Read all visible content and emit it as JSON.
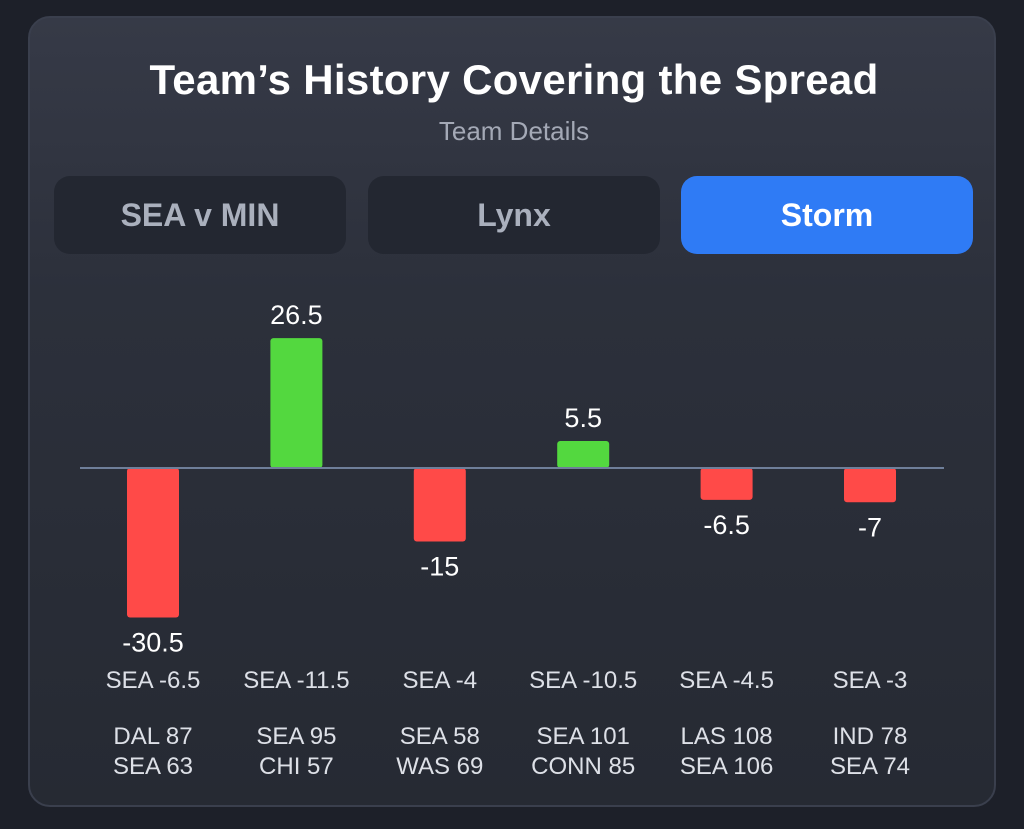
{
  "header": {
    "title": "Team’s History Covering the Spread",
    "subtitle": "Team Details"
  },
  "tabs": [
    {
      "label": "SEA v MIN",
      "active": false
    },
    {
      "label": "Lynx",
      "active": false
    },
    {
      "label": "Storm",
      "active": true
    }
  ],
  "colors": {
    "positive": "#53d83f",
    "negative": "#ff4a48",
    "accent": "#2f7bf5",
    "baseline": "#6f7f9a"
  },
  "chart_data": {
    "type": "bar",
    "categories": [
      "SEA -6.5",
      "SEA -11.5",
      "SEA -4",
      "SEA -10.5",
      "SEA -4.5",
      "SEA -3"
    ],
    "values": [
      -30.5,
      26.5,
      -15,
      5.5,
      -6.5,
      -7
    ],
    "value_labels": [
      "-30.5",
      "26.5",
      "-15",
      "5.5",
      "-6.5",
      "-7"
    ],
    "scores": [
      [
        "DAL 87",
        "SEA 63"
      ],
      [
        "SEA 95",
        "CHI 57"
      ],
      [
        "SEA 58",
        "WAS 69"
      ],
      [
        "SEA 101",
        "CONN 85"
      ],
      [
        "LAS 108",
        "SEA 106"
      ],
      [
        "IND 78",
        "SEA 74"
      ]
    ],
    "ylim": [
      -32,
      28
    ],
    "grid": false,
    "title": "",
    "xlabel": "",
    "ylabel": ""
  }
}
